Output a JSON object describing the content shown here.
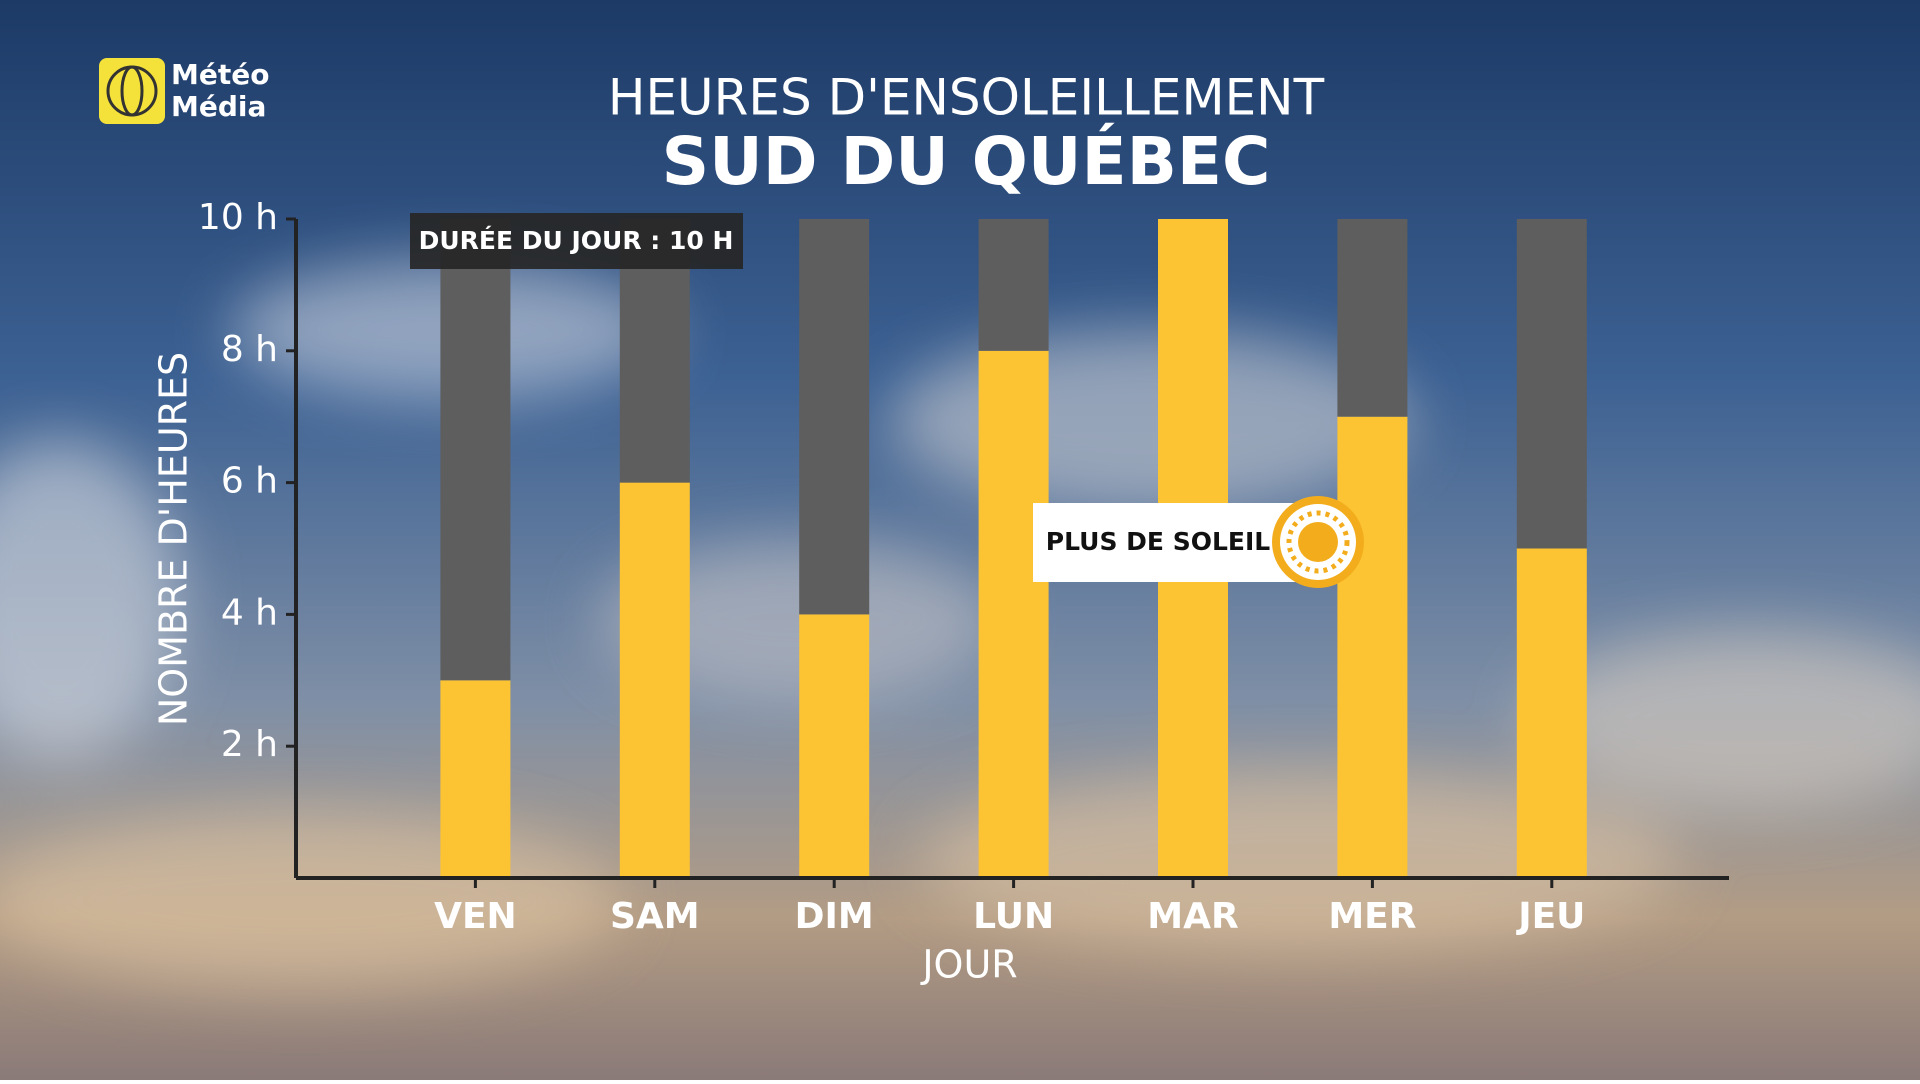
{
  "brand": [
    "Météo",
    "Média"
  ],
  "chart_data": {
    "type": "bar",
    "stacked": true,
    "title": "HEURES D'ENSOLEILLEMENT",
    "subtitle": "SUD DU QUÉBEC",
    "y_label": "NOMBRE D'HEURES",
    "x_label": "JOUR",
    "annotations": [
      "DURÉE DU JOUR : 10 H",
      "PLUS DE SOLEIL"
    ],
    "categories": [
      "VEN",
      "SAM",
      "DIM",
      "LUN",
      "MAR",
      "MER",
      "JEU"
    ],
    "series": [
      {
        "color": "#fcc333",
        "values": [
          3,
          6,
          4,
          8,
          10,
          7,
          5
        ]
      },
      {
        "color": "#5e5e5e",
        "values": [
          7,
          4,
          6,
          2,
          0,
          3,
          5
        ]
      }
    ],
    "ylim": [
      0,
      10
    ],
    "yticks": [
      {
        "value": 2,
        "label": "2 h"
      },
      {
        "value": 4,
        "label": "4 h"
      },
      {
        "value": 6,
        "label": "6 h"
      },
      {
        "value": 8,
        "label": "8 h"
      },
      {
        "value": 10,
        "label": "10 h"
      }
    ]
  }
}
